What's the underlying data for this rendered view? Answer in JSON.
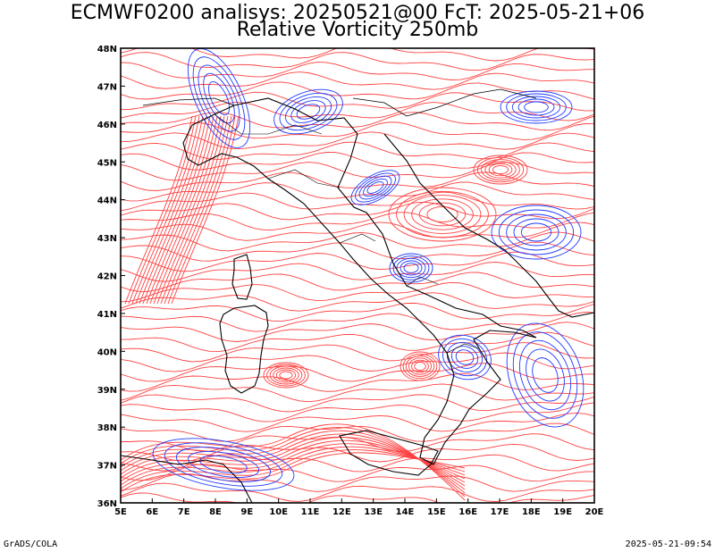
{
  "title": {
    "line1": "ECMWF0200 analisys: 20250521@00 FcT: 2025-05-21+06",
    "line2": "Relative Vorticity 250mb"
  },
  "map": {
    "lon_range": [
      5,
      20
    ],
    "lat_range": [
      36,
      48
    ],
    "lon_ticks": [
      "5E",
      "6E",
      "7E",
      "8E",
      "9E",
      "10E",
      "11E",
      "12E",
      "13E",
      "14E",
      "15E",
      "16E",
      "17E",
      "18E",
      "19E",
      "20E"
    ],
    "lat_ticks": [
      "36N",
      "37N",
      "38N",
      "39N",
      "40N",
      "41N",
      "42N",
      "43N",
      "44N",
      "45N",
      "46N",
      "47N",
      "48N"
    ],
    "colors": {
      "positive": "#ff4040",
      "negative": "#1e3cff",
      "coast": "#000000",
      "frame": "#000000"
    }
  },
  "footer": {
    "left": "GrADS/COLA",
    "right": "2025-05-21-09:54"
  }
}
